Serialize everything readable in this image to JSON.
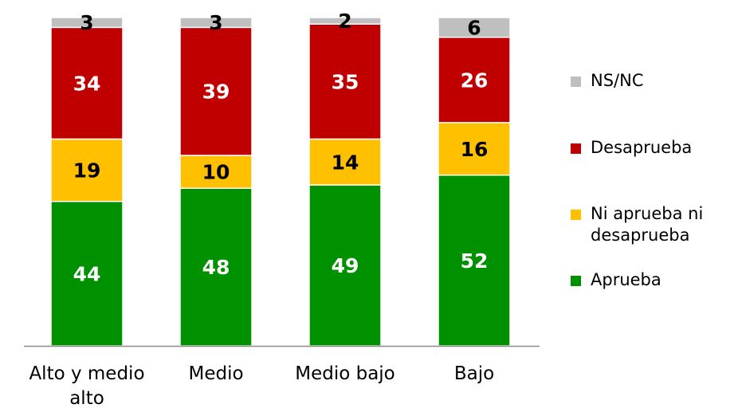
{
  "chart_data": {
    "type": "bar",
    "stacked": true,
    "categories": [
      "Alto y medio alto",
      "Medio",
      "Medio bajo",
      "Bajo"
    ],
    "series": [
      {
        "name": "Aprueba",
        "color": "#009100",
        "label_color": "#ffffff",
        "values": [
          44,
          48,
          49,
          52
        ]
      },
      {
        "name": "Ni aprueba ni desaprueba",
        "color": "#ffc000",
        "label_color": "#000000",
        "values": [
          19,
          10,
          14,
          16
        ]
      },
      {
        "name": "Desaprueba",
        "color": "#c00000",
        "label_color": "#ffffff",
        "values": [
          34,
          39,
          35,
          26
        ]
      },
      {
        "name": "NS/NC",
        "color": "#bfbfbf",
        "label_color": "#000000",
        "values": [
          3,
          3,
          2,
          6
        ]
      }
    ],
    "legend_order": [
      "NS/NC",
      "Desaprueba",
      "Ni aprueba ni desaprueba",
      "Aprueba"
    ],
    "legend_position": "right",
    "ylim": [
      0,
      100
    ],
    "grid": false,
    "title": "",
    "xlabel": "",
    "ylabel": ""
  }
}
